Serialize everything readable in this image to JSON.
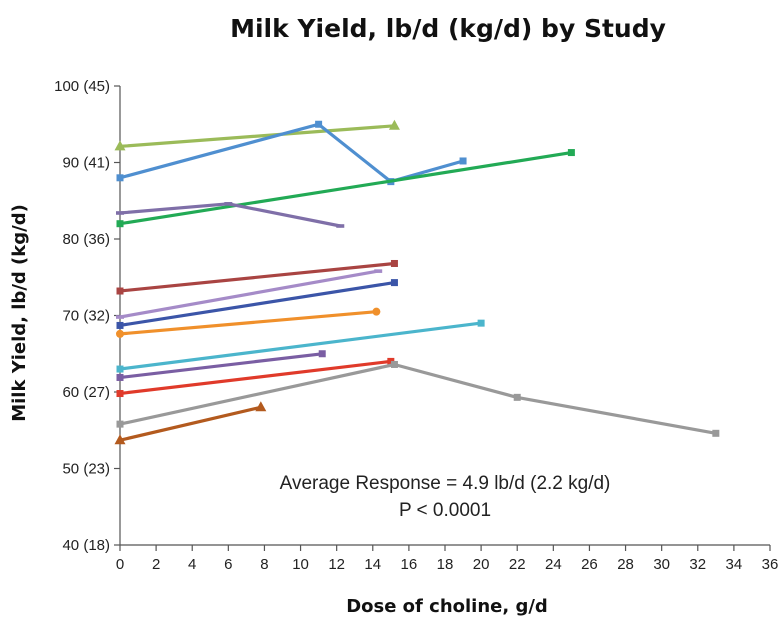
{
  "chart_data": {
    "type": "line",
    "title": "Milk Yield, lb/d (kg/d) by Study",
    "xlabel": "Dose of choline, g/d",
    "ylabel": "Milk Yield, lb/d (kg/d)",
    "xlim": [
      0,
      36
    ],
    "ylim": [
      40,
      100
    ],
    "x_ticks": [
      "0",
      "2",
      "4",
      "6",
      "8",
      "10",
      "12",
      "14",
      "16",
      "18",
      "20",
      "22",
      "24",
      "26",
      "28",
      "30",
      "32",
      "34",
      "36"
    ],
    "y_ticks": [
      {
        "value": 40,
        "label": "40 (18)"
      },
      {
        "value": 50,
        "label": "50 (23)"
      },
      {
        "value": 60,
        "label": "60 (27)"
      },
      {
        "value": 70,
        "label": "70 (32)"
      },
      {
        "value": 80,
        "label": "80 (36)"
      },
      {
        "value": 90,
        "label": "90 (41)"
      },
      {
        "value": 100,
        "label": "100 (45)"
      }
    ],
    "grid": false,
    "legend": "none",
    "annotations": [
      "Average Response = 4.9 lb/d (2.2 kg/d)",
      "P < 0.0001"
    ],
    "series": [
      {
        "color": "#9bbb59",
        "marker": "triangle",
        "points": [
          [
            0,
            92.1
          ],
          [
            15.2,
            94.8
          ]
        ]
      },
      {
        "color": "#4f8fd0",
        "marker": "square",
        "points": [
          [
            0,
            88.0
          ],
          [
            11.0,
            95.0
          ],
          [
            15.0,
            87.5
          ],
          [
            19.0,
            90.2
          ]
        ]
      },
      {
        "color": "#22aa55",
        "marker": "square",
        "points": [
          [
            0,
            82.0
          ],
          [
            25.0,
            91.3
          ]
        ]
      },
      {
        "color": "#7f6fa8",
        "marker": "dash",
        "points": [
          [
            0,
            83.4
          ],
          [
            6.0,
            84.6
          ],
          [
            12.2,
            81.7
          ]
        ]
      },
      {
        "color": "#a94442",
        "marker": "square",
        "points": [
          [
            0,
            73.2
          ],
          [
            15.2,
            76.8
          ]
        ]
      },
      {
        "color": "#a58bc8",
        "marker": "dash",
        "points": [
          [
            0,
            69.8
          ],
          [
            14.3,
            75.8
          ]
        ]
      },
      {
        "color": "#3b55a8",
        "marker": "square",
        "points": [
          [
            0,
            68.7
          ],
          [
            15.2,
            74.3
          ]
        ]
      },
      {
        "color": "#f0902b",
        "marker": "circle",
        "points": [
          [
            0,
            67.6
          ],
          [
            14.2,
            70.5
          ]
        ]
      },
      {
        "color": "#4bb5cc",
        "marker": "square",
        "points": [
          [
            0,
            63.0
          ],
          [
            20.0,
            69.0
          ]
        ]
      },
      {
        "color": "#7a5ea3",
        "marker": "square",
        "points": [
          [
            0,
            61.9
          ],
          [
            11.2,
            65.0
          ]
        ]
      },
      {
        "color": "#e03a2a",
        "marker": "square",
        "points": [
          [
            0,
            59.8
          ],
          [
            15.0,
            64.0
          ]
        ]
      },
      {
        "color": "#999999",
        "marker": "square",
        "points": [
          [
            0,
            55.8
          ],
          [
            15.2,
            63.6
          ],
          [
            22.0,
            59.3
          ],
          [
            33.0,
            54.6
          ]
        ]
      },
      {
        "color": "#b35a1e",
        "marker": "triangle",
        "points": [
          [
            0,
            53.7
          ],
          [
            7.8,
            58.0
          ]
        ]
      }
    ]
  }
}
